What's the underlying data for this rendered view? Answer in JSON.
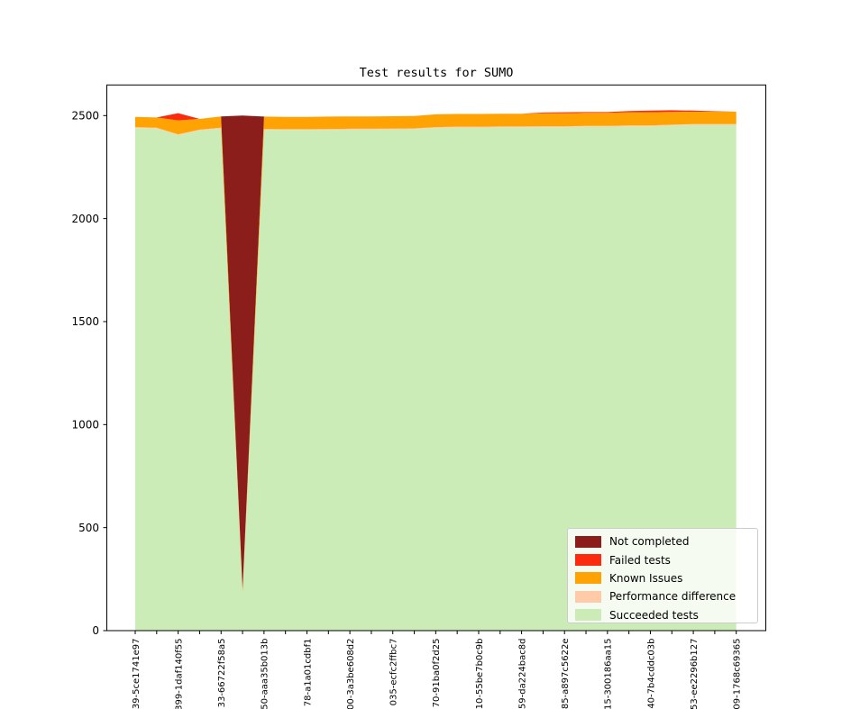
{
  "chart_data": {
    "type": "area",
    "stacked": true,
    "title": "Test results for SUMO",
    "ylim": [
      0,
      2500
    ],
    "y_tick_labels": [
      "0",
      "500",
      "1000",
      "1500",
      "2000",
      "2500"
    ],
    "x_point_count": 29,
    "x_label_every": 2,
    "x_tick_labels": [
      "39-5ce1741e97",
      "399-1daf140f55",
      "33-66722f58a5",
      "50-aaa35b013b",
      "78-a1a01cdbf1",
      "00-3a3be608d2",
      "035-ecfc2ffbc7",
      "70-91ba0f2d25",
      "10-55be7b0c9b",
      "59-da224bac8d",
      "85-a897c5622e",
      "15-300186aa15",
      "40-7b4cddc03b",
      "53-ee2296b127",
      "09-1768c69365"
    ],
    "grid": false,
    "legend_position": "lower right",
    "series_bottom_to_top": [
      {
        "name": "Succeeded tests",
        "color": "#cbecb7",
        "values": [
          2440,
          2437,
          2405,
          2428,
          2437,
          180,
          2431,
          2430,
          2430,
          2431,
          2432,
          2432,
          2433,
          2434,
          2440,
          2442,
          2442,
          2443,
          2443,
          2444,
          2444,
          2446,
          2446,
          2448,
          2448,
          2452,
          2455,
          2455,
          2455
        ]
      },
      {
        "name": "Performance difference",
        "color": "#fecaa8",
        "values": [
          4,
          4,
          4,
          4,
          4,
          4,
          4,
          4,
          4,
          4,
          4,
          4,
          4,
          4,
          4,
          4,
          4,
          4,
          4,
          4,
          4,
          4,
          4,
          4,
          4,
          4,
          4,
          4,
          4
        ]
      },
      {
        "name": "Known Issues",
        "color": "#fea303",
        "values": [
          50,
          50,
          68,
          52,
          55,
          16,
          60,
          60,
          60,
          60,
          60,
          60,
          60,
          60,
          62,
          62,
          62,
          62,
          62,
          63,
          63,
          63,
          63,
          64,
          64,
          62,
          60,
          60,
          60
        ]
      },
      {
        "name": "Failed tests",
        "color": "#fa2b0f",
        "values": [
          0,
          0,
          35,
          0,
          0,
          0,
          0,
          0,
          0,
          0,
          0,
          0,
          0,
          0,
          0,
          0,
          0,
          0,
          0,
          4,
          5,
          4,
          4,
          6,
          8,
          8,
          5,
          2,
          0
        ]
      },
      {
        "name": "Not completed",
        "color": "#8b1e1a",
        "values": [
          0,
          0,
          0,
          0,
          0,
          2300,
          0,
          0,
          0,
          0,
          0,
          0,
          0,
          0,
          0,
          0,
          0,
          0,
          0,
          0,
          0,
          0,
          0,
          0,
          0,
          0,
          0,
          0,
          0
        ]
      }
    ]
  },
  "legend": {
    "items": [
      {
        "label": "Not completed",
        "color": "#8b1e1a"
      },
      {
        "label": "Failed tests",
        "color": "#fa2b0f"
      },
      {
        "label": "Known Issues",
        "color": "#fea303"
      },
      {
        "label": "Performance difference",
        "color": "#fecaa8"
      },
      {
        "label": "Succeeded tests",
        "color": "#cbecb7"
      }
    ]
  }
}
